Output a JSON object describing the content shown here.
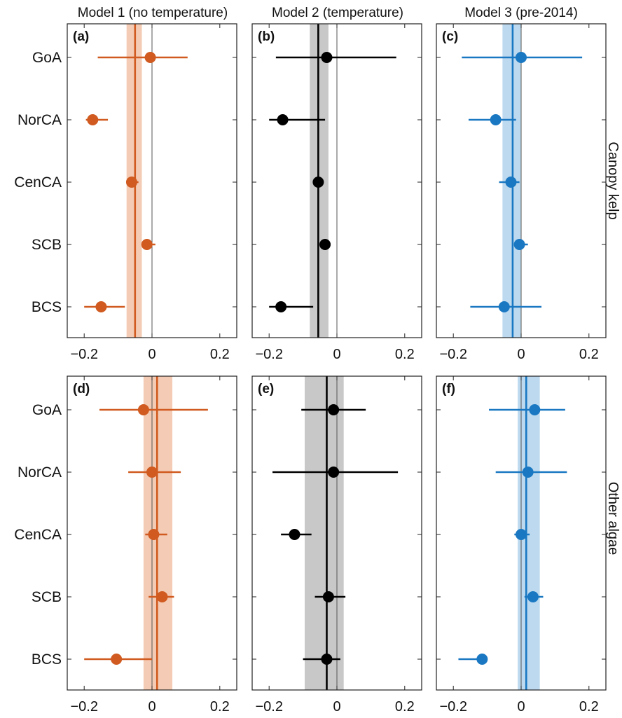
{
  "chart_data": {
    "type": "scatter",
    "subtype": "coefficient-plot-with-errorbars",
    "categories": [
      "GoA",
      "NorCA",
      "CenCA",
      "SCB",
      "BCS"
    ],
    "column_titles": [
      "Model 1 (no temperature)",
      "Model 2 (temperature)",
      "Model 3 (pre-2014)"
    ],
    "row_titles": [
      "Canopy kelp",
      "Other algae"
    ],
    "xlim": [
      -0.25,
      0.25
    ],
    "xticks": [
      -0.2,
      0,
      0.2
    ],
    "xtick_labels": [
      "−0.2",
      "0",
      "0.2"
    ],
    "colors": {
      "model1": "#d05a1f",
      "model2": "#000000",
      "model3": "#1a78c2"
    },
    "band_colors": {
      "model1": "#f4cbb4",
      "model2": "#c8c8c8",
      "model3": "#bcd9ef"
    },
    "panels": [
      {
        "label": "(a)",
        "row": 0,
        "col": 0,
        "model": "model1",
        "mean": -0.05,
        "band": [
          -0.075,
          -0.03
        ],
        "points": [
          {
            "category": "GoA",
            "value": -0.005,
            "lo": -0.16,
            "hi": 0.105
          },
          {
            "category": "NorCA",
            "value": -0.175,
            "lo": -0.195,
            "hi": -0.13
          },
          {
            "category": "CenCA",
            "value": -0.06,
            "lo": -0.075,
            "hi": -0.04
          },
          {
            "category": "SCB",
            "value": -0.015,
            "lo": -0.03,
            "hi": 0.01
          },
          {
            "category": "BCS",
            "value": -0.15,
            "lo": -0.2,
            "hi": -0.08
          }
        ]
      },
      {
        "label": "(b)",
        "row": 0,
        "col": 1,
        "model": "model2",
        "mean": -0.055,
        "band": [
          -0.08,
          -0.025
        ],
        "points": [
          {
            "category": "GoA",
            "value": -0.03,
            "lo": -0.18,
            "hi": 0.175
          },
          {
            "category": "NorCA",
            "value": -0.16,
            "lo": -0.2,
            "hi": -0.035
          },
          {
            "category": "CenCA",
            "value": -0.055,
            "lo": -0.07,
            "hi": -0.04
          },
          {
            "category": "SCB",
            "value": -0.035,
            "lo": -0.05,
            "hi": -0.02
          },
          {
            "category": "BCS",
            "value": -0.165,
            "lo": -0.2,
            "hi": -0.07
          }
        ]
      },
      {
        "label": "(c)",
        "row": 0,
        "col": 2,
        "model": "model3",
        "mean": -0.025,
        "band": [
          -0.055,
          0.0
        ],
        "points": [
          {
            "category": "GoA",
            "value": 0.0,
            "lo": -0.175,
            "hi": 0.18
          },
          {
            "category": "NorCA",
            "value": -0.075,
            "lo": -0.155,
            "hi": -0.015
          },
          {
            "category": "CenCA",
            "value": -0.03,
            "lo": -0.065,
            "hi": -0.005
          },
          {
            "category": "SCB",
            "value": -0.005,
            "lo": -0.015,
            "hi": 0.02
          },
          {
            "category": "BCS",
            "value": -0.05,
            "lo": -0.15,
            "hi": 0.06
          }
        ]
      },
      {
        "label": "(d)",
        "row": 1,
        "col": 0,
        "model": "model1",
        "mean": 0.015,
        "band": [
          -0.025,
          0.06
        ],
        "points": [
          {
            "category": "GoA",
            "value": -0.025,
            "lo": -0.155,
            "hi": 0.165
          },
          {
            "category": "NorCA",
            "value": 0.0,
            "lo": -0.07,
            "hi": 0.085
          },
          {
            "category": "CenCA",
            "value": 0.005,
            "lo": -0.02,
            "hi": 0.045
          },
          {
            "category": "SCB",
            "value": 0.03,
            "lo": -0.01,
            "hi": 0.065
          },
          {
            "category": "BCS",
            "value": -0.105,
            "lo": -0.2,
            "hi": 0.0
          }
        ]
      },
      {
        "label": "(e)",
        "row": 1,
        "col": 1,
        "model": "model2",
        "mean": -0.03,
        "band": [
          -0.095,
          0.02
        ],
        "points": [
          {
            "category": "GoA",
            "value": -0.01,
            "lo": -0.105,
            "hi": 0.085
          },
          {
            "category": "NorCA",
            "value": -0.01,
            "lo": -0.19,
            "hi": 0.18
          },
          {
            "category": "CenCA",
            "value": -0.125,
            "lo": -0.165,
            "hi": -0.075
          },
          {
            "category": "SCB",
            "value": -0.025,
            "lo": -0.065,
            "hi": 0.025
          },
          {
            "category": "BCS",
            "value": -0.03,
            "lo": -0.1,
            "hi": 0.01
          }
        ]
      },
      {
        "label": "(f)",
        "row": 1,
        "col": 2,
        "model": "model3",
        "mean": 0.015,
        "band": [
          -0.01,
          0.055
        ],
        "points": [
          {
            "category": "GoA",
            "value": 0.04,
            "lo": -0.095,
            "hi": 0.13
          },
          {
            "category": "NorCA",
            "value": 0.02,
            "lo": -0.075,
            "hi": 0.135
          },
          {
            "category": "CenCA",
            "value": 0.0,
            "lo": -0.02,
            "hi": 0.025
          },
          {
            "category": "SCB",
            "value": 0.035,
            "lo": 0.01,
            "hi": 0.065
          },
          {
            "category": "BCS",
            "value": -0.115,
            "lo": -0.185,
            "hi": -0.1
          }
        ]
      }
    ]
  }
}
